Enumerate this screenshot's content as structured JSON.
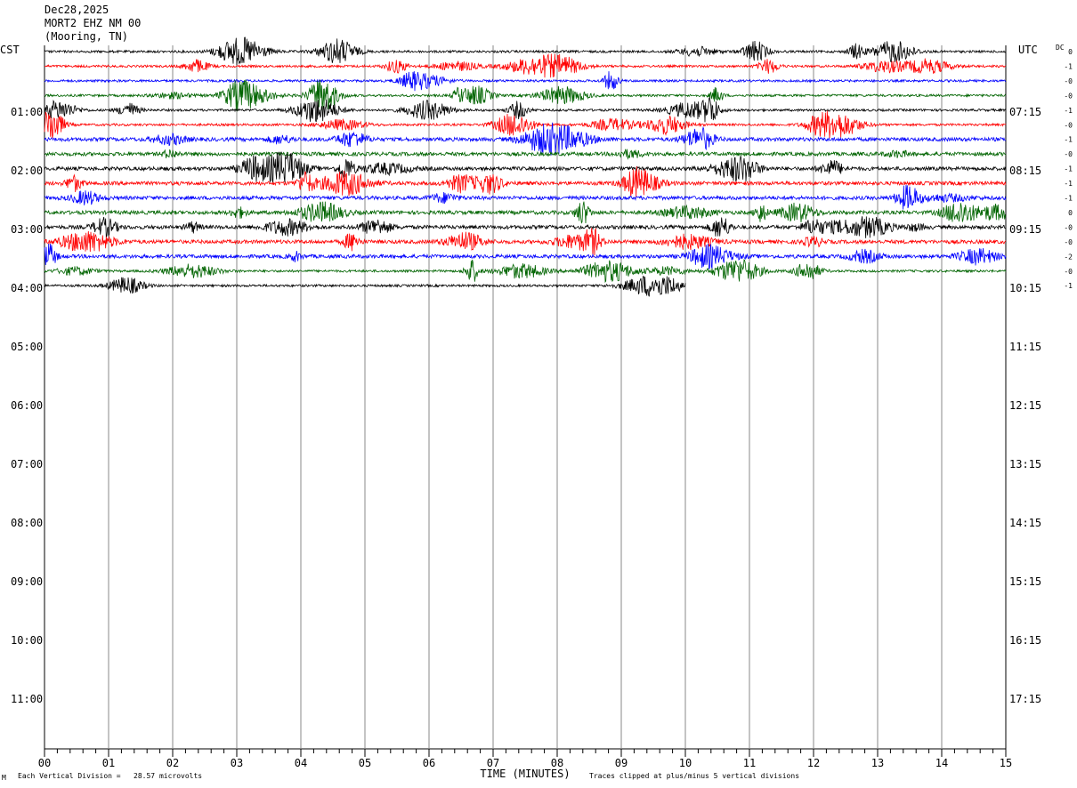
{
  "header": {
    "date": "Dec28,2025",
    "station": "MORT2 EHZ NM 00",
    "location": "(Mooring, TN)"
  },
  "left_zone_label": "CST",
  "right_zone_label": "UTC",
  "dc_label": "DC",
  "footer": {
    "scale_note": "Each Vertical Division =   28.57 microvolts",
    "clip_note": "Traces clipped at plus/minus 5 vertical divisions",
    "corner_mark": "M"
  },
  "chart_data": {
    "type": "line",
    "xlabel": "TIME (MINUTES)",
    "x_ticks": [
      "00",
      "01",
      "02",
      "03",
      "04",
      "05",
      "06",
      "07",
      "08",
      "09",
      "10",
      "11",
      "12",
      "13",
      "14",
      "15"
    ],
    "xlim": [
      0,
      15
    ],
    "left_hour_labels": [
      "01:00",
      "02:00",
      "03:00",
      "04:00",
      "05:00",
      "06:00",
      "07:00",
      "08:00",
      "09:00",
      "10:00",
      "11:00"
    ],
    "right_hour_labels": [
      "07:15",
      "08:15",
      "09:15",
      "10:15",
      "11:15",
      "12:15",
      "13:15",
      "14:15",
      "15:15",
      "16:15",
      "17:15"
    ],
    "trace_colors": [
      "#000000",
      "#ff0000",
      "#0000ff",
      "#006400"
    ],
    "dc_offsets": [
      "0",
      "-1",
      "-0",
      "-0",
      "-1",
      "-0",
      "-1",
      "-0",
      "-1",
      "-1",
      "-1",
      "0",
      "-0",
      "-0",
      "-2",
      "-0",
      "-1"
    ],
    "trace_count": 17,
    "last_trace_end_minute": 10
  }
}
